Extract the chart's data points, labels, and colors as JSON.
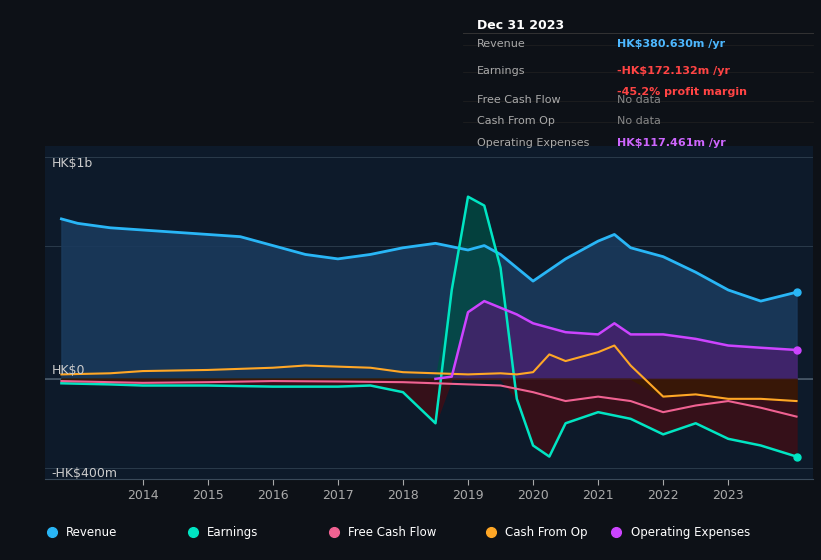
{
  "bg_color": "#0d1117",
  "plot_bg_color": "#0d1a2a",
  "title_box": {
    "date": "Dec 31 2023",
    "rows": [
      {
        "label": "Revenue",
        "value": "HK$380.630m /yr",
        "value_color": "#4db8ff"
      },
      {
        "label": "Earnings",
        "value": "-HK$172.132m /yr",
        "value_color": "#ff4444",
        "sub": "-45.2% profit margin",
        "sub_color": "#ff4444"
      },
      {
        "label": "Free Cash Flow",
        "value": "No data",
        "value_color": "#888888"
      },
      {
        "label": "Cash From Op",
        "value": "No data",
        "value_color": "#888888"
      },
      {
        "label": "Operating Expenses",
        "value": "HK$117.461m /yr",
        "value_color": "#cc66ff"
      }
    ]
  },
  "ylabel_top": "HK$1b",
  "ylabel_zero": "HK$0",
  "ylabel_bottom": "-HK$400m",
  "xlim": [
    2012.5,
    2024.3
  ],
  "ylim": [
    -450,
    1050
  ],
  "ygrid_vals": [
    -400,
    0,
    600,
    1000
  ],
  "revenue": {
    "x": [
      2012.75,
      2013.0,
      2013.5,
      2014.0,
      2014.5,
      2015.0,
      2015.5,
      2016.0,
      2016.5,
      2017.0,
      2017.5,
      2018.0,
      2018.5,
      2019.0,
      2019.25,
      2019.5,
      2019.75,
      2020.0,
      2020.5,
      2021.0,
      2021.25,
      2021.5,
      2022.0,
      2022.5,
      2023.0,
      2023.5,
      2024.05
    ],
    "y": [
      720,
      700,
      680,
      670,
      660,
      650,
      640,
      600,
      560,
      540,
      560,
      590,
      610,
      580,
      600,
      560,
      500,
      440,
      540,
      620,
      650,
      590,
      550,
      480,
      400,
      350,
      390
    ],
    "color": "#29b6f6",
    "fill_color": "#1a3a5c",
    "lw": 2.0
  },
  "earnings": {
    "x": [
      2012.75,
      2013.5,
      2014.0,
      2015.0,
      2016.0,
      2017.0,
      2017.5,
      2018.0,
      2018.5,
      2018.75,
      2019.0,
      2019.25,
      2019.5,
      2019.75,
      2020.0,
      2020.25,
      2020.5,
      2021.0,
      2021.5,
      2022.0,
      2022.5,
      2023.0,
      2023.5,
      2024.05
    ],
    "y": [
      -20,
      -25,
      -30,
      -30,
      -35,
      -35,
      -30,
      -60,
      -200,
      400,
      820,
      780,
      500,
      -90,
      -300,
      -350,
      -200,
      -150,
      -180,
      -250,
      -200,
      -270,
      -300,
      -350
    ],
    "color": "#00e5c3",
    "fill_color": "#004d44",
    "lw": 1.8
  },
  "free_cash_flow": {
    "x": [
      2012.75,
      2013.5,
      2014.0,
      2015.0,
      2016.0,
      2017.0,
      2018.0,
      2018.5,
      2019.0,
      2019.5,
      2020.0,
      2020.5,
      2021.0,
      2021.5,
      2022.0,
      2022.5,
      2023.0,
      2023.5,
      2024.05
    ],
    "y": [
      -10,
      -15,
      -18,
      -15,
      -10,
      -12,
      -15,
      -20,
      -25,
      -30,
      -60,
      -100,
      -80,
      -100,
      -150,
      -120,
      -100,
      -130,
      -170
    ],
    "color": "#f06292",
    "lw": 1.5
  },
  "cash_from_op": {
    "x": [
      2012.75,
      2013.5,
      2014.0,
      2015.0,
      2016.0,
      2016.5,
      2017.0,
      2017.5,
      2018.0,
      2018.5,
      2019.0,
      2019.5,
      2019.75,
      2020.0,
      2020.25,
      2020.5,
      2021.0,
      2021.25,
      2021.5,
      2022.0,
      2022.5,
      2023.0,
      2023.5,
      2024.05
    ],
    "y": [
      20,
      25,
      35,
      40,
      50,
      60,
      55,
      50,
      30,
      25,
      20,
      25,
      20,
      30,
      110,
      80,
      120,
      150,
      60,
      -80,
      -70,
      -90,
      -90,
      -100
    ],
    "color": "#ffa726",
    "lw": 1.5
  },
  "op_expenses": {
    "x": [
      2018.5,
      2018.75,
      2019.0,
      2019.25,
      2019.5,
      2019.75,
      2020.0,
      2020.5,
      2021.0,
      2021.25,
      2021.5,
      2022.0,
      2022.5,
      2023.0,
      2023.5,
      2024.05
    ],
    "y": [
      0,
      10,
      300,
      350,
      320,
      290,
      250,
      210,
      200,
      250,
      200,
      200,
      180,
      150,
      140,
      130
    ],
    "color": "#cc44ff",
    "fill_color": "#4a2070",
    "lw": 1.8
  },
  "legend": [
    {
      "label": "Revenue",
      "color": "#29b6f6"
    },
    {
      "label": "Earnings",
      "color": "#00e5c3"
    },
    {
      "label": "Free Cash Flow",
      "color": "#f06292"
    },
    {
      "label": "Cash From Op",
      "color": "#ffa726"
    },
    {
      "label": "Operating Expenses",
      "color": "#cc44ff"
    }
  ]
}
